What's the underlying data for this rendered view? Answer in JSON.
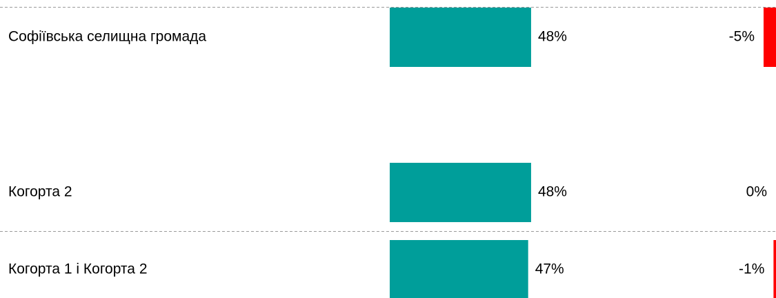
{
  "chart_data": {
    "type": "bar",
    "categories": [
      "Софіївська селищна громада",
      "Когорта 2",
      "Когорта 1 і Когорта 2"
    ],
    "values": [
      48,
      48,
      47
    ],
    "value_labels": [
      "48%",
      "48%",
      "47%"
    ],
    "color": "#009e9a",
    "xlim": [
      0,
      100
    ],
    "changes": [
      -5,
      0,
      -1
    ],
    "change_labels": [
      "-5%",
      "0%",
      "-1%"
    ],
    "change_color": "#ff0000",
    "change_lim": [
      -10,
      0
    ]
  }
}
